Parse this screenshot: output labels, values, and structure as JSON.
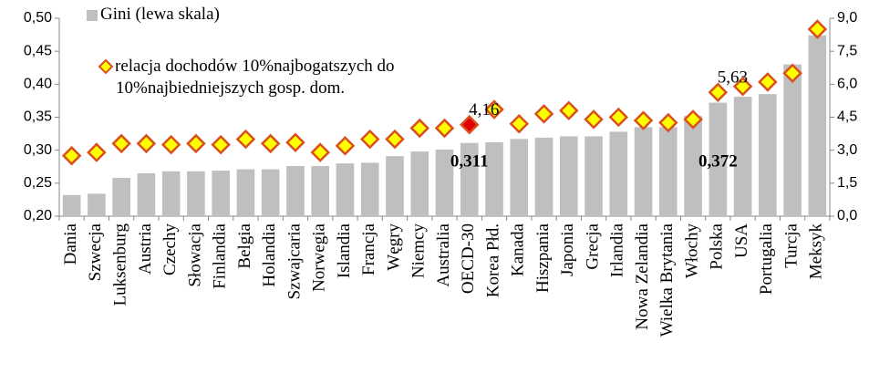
{
  "chart_data": {
    "type": "bar_marker",
    "categories": [
      "Dania",
      "Szwecja",
      "Luksenburg",
      "Austria",
      "Czechy",
      "Słowacja",
      "Finlandia",
      "Belgia",
      "Holandia",
      "Szwajcaria",
      "Norwegia",
      "Islandia",
      "Francja",
      "Węgry",
      "Niemcy",
      "Australia",
      "OECD-30",
      "Korea Płd.",
      "Kanada",
      "Hiszpania",
      "Japonia",
      "Grecja",
      "Irlandia",
      "Nowa Zelandia",
      "Wielka Brytania",
      "Włochy",
      "Polska",
      "USA",
      "Portugalia",
      "Turcja",
      "Meksyk"
    ],
    "series": [
      {
        "name": "Gini (lewa skala)",
        "color": "#bfbfbf",
        "values": [
          0.232,
          0.234,
          0.258,
          0.265,
          0.268,
          0.268,
          0.269,
          0.271,
          0.271,
          0.276,
          0.276,
          0.28,
          0.281,
          0.291,
          0.298,
          0.301,
          0.311,
          0.312,
          0.317,
          0.319,
          0.321,
          0.321,
          0.328,
          0.335,
          0.335,
          0.352,
          0.372,
          0.381,
          0.385,
          0.43,
          0.474
        ],
        "value_labels": [
          null,
          null,
          null,
          null,
          null,
          null,
          null,
          null,
          null,
          null,
          null,
          null,
          null,
          null,
          null,
          null,
          "0,311",
          null,
          null,
          null,
          null,
          null,
          null,
          null,
          null,
          null,
          "0,372",
          null,
          null,
          null,
          null
        ]
      },
      {
        "name": "relacja dochodów 10%najbogatszych do 10%najbiedniejszych gosp. dom.",
        "color": "#ffff00",
        "edgecolor": "#d9501e",
        "axis": "y2",
        "colors": [
          "#ffff00",
          "#ffff00",
          "#ffff00",
          "#ffff00",
          "#ffff00",
          "#ffff00",
          "#ffff00",
          "#ffff00",
          "#ffff00",
          "#ffff00",
          "#ffff00",
          "#ffff00",
          "#ffff00",
          "#ffff00",
          "#ffff00",
          "#ffff00",
          "#e00000",
          "#ffff00",
          "#ffff00",
          "#ffff00",
          "#ffff00",
          "#ffff00",
          "#ffff00",
          "#ffff00",
          "#ffff00",
          "#ffff00",
          "#ffff00",
          "#ffff00",
          "#ffff00",
          "#ffff00",
          "#ffff00"
        ],
        "values": [
          2.75,
          2.9,
          3.3,
          3.3,
          3.25,
          3.3,
          3.25,
          3.5,
          3.3,
          3.35,
          2.9,
          3.2,
          3.5,
          3.5,
          4.0,
          4.0,
          4.16,
          4.85,
          4.2,
          4.65,
          4.8,
          4.4,
          4.5,
          4.35,
          4.25,
          4.4,
          5.63,
          5.9,
          6.1,
          6.5,
          8.5
        ],
        "value_labels": [
          null,
          null,
          null,
          null,
          null,
          null,
          null,
          null,
          null,
          null,
          null,
          null,
          null,
          null,
          null,
          null,
          "4,16",
          null,
          null,
          null,
          null,
          null,
          null,
          null,
          null,
          null,
          "5,63",
          null,
          null,
          null,
          null
        ]
      }
    ],
    "ylim": [
      0.2,
      0.5
    ],
    "yticks": [
      {
        "value": 0.2,
        "label": "0,20"
      },
      {
        "value": 0.25,
        "label": "0,25"
      },
      {
        "value": 0.3,
        "label": "0,30"
      },
      {
        "value": 0.35,
        "label": "0,35"
      },
      {
        "value": 0.4,
        "label": "0,40"
      },
      {
        "value": 0.45,
        "label": "0,45"
      },
      {
        "value": 0.5,
        "label": "0,50"
      }
    ],
    "y2lim": [
      0,
      9
    ],
    "y2ticks": [
      {
        "value": 0,
        "label": "0,0"
      },
      {
        "value": 1.5,
        "label": "1,5"
      },
      {
        "value": 3,
        "label": "3,0"
      },
      {
        "value": 4.5,
        "label": "4,5"
      },
      {
        "value": 6,
        "label": "6,0"
      },
      {
        "value": 7.5,
        "label": "7,5"
      },
      {
        "value": 9,
        "label": "9,0"
      }
    ]
  }
}
